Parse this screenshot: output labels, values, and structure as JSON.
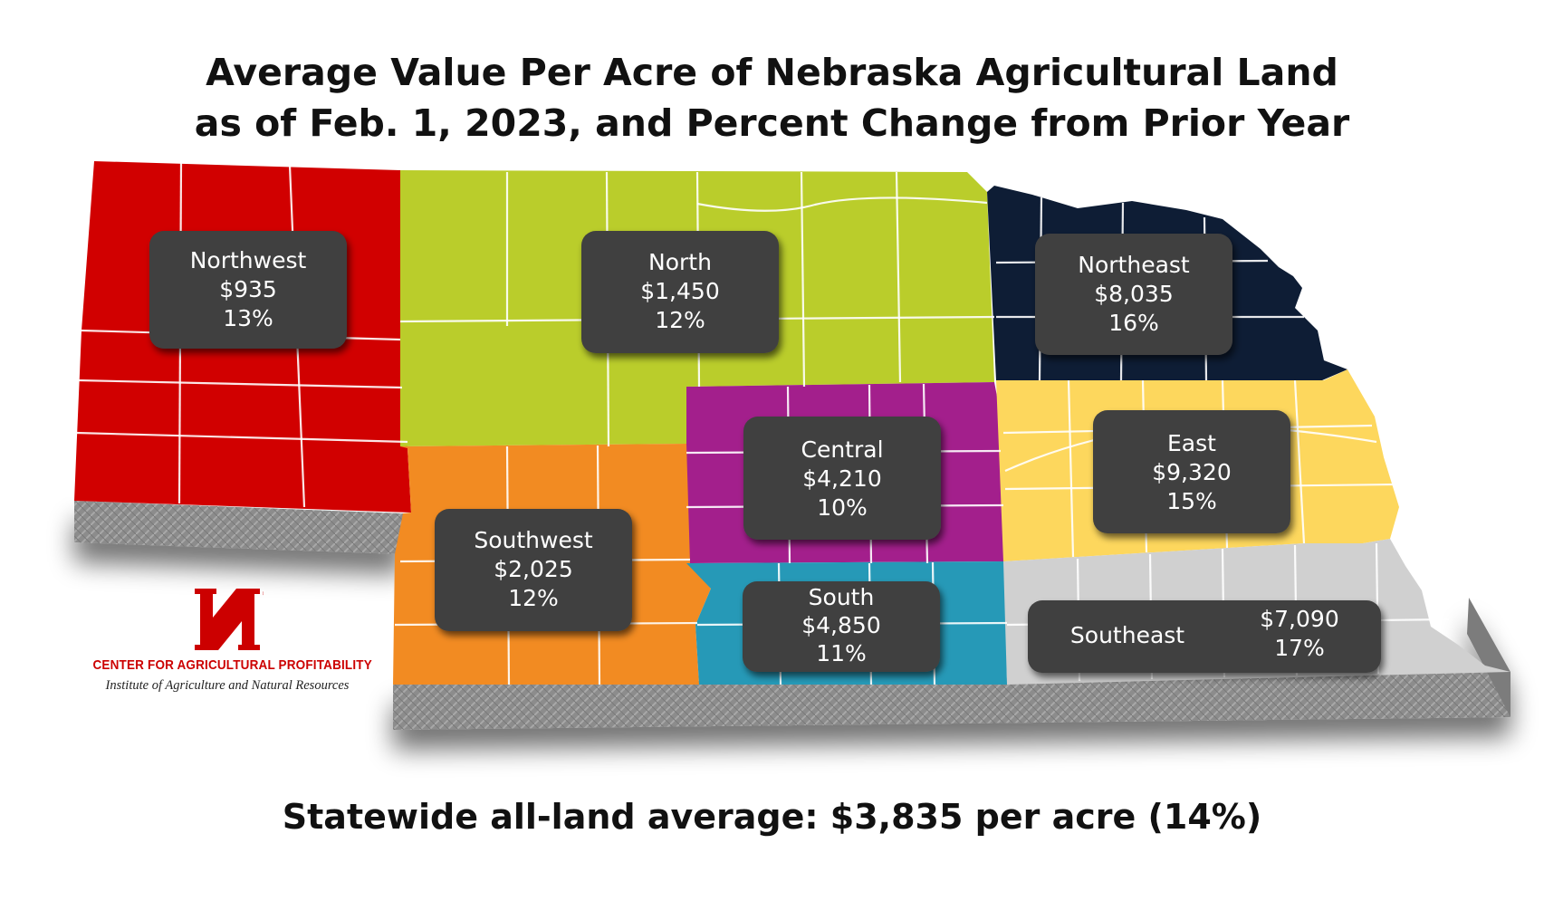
{
  "title": {
    "line1": "Average Value Per Acre of Nebraska Agricultural Land",
    "line2": "as of Feb. 1, 2023, and Percent Change from Prior Year"
  },
  "regions": [
    {
      "name": "Northwest",
      "value": "$935",
      "change": "13%",
      "color": "#d10000"
    },
    {
      "name": "North",
      "value": "$1,450",
      "change": "12%",
      "color": "#bacd2b"
    },
    {
      "name": "Northeast",
      "value": "$8,035",
      "change": "16%",
      "color": "#0e1d35"
    },
    {
      "name": "Central",
      "value": "$4,210",
      "change": "10%",
      "color": "#a31f8c"
    },
    {
      "name": "East",
      "value": "$9,320",
      "change": "15%",
      "color": "#fdd75d"
    },
    {
      "name": "Southwest",
      "value": "$2,025",
      "change": "12%",
      "color": "#f28b22"
    },
    {
      "name": "South",
      "value": "$4,850",
      "change": "11%",
      "color": "#2699b7"
    },
    {
      "name": "Southeast",
      "value": "$7,090",
      "change": "17%",
      "color": "#d0d0d0"
    }
  ],
  "statewide": "Statewide all-land average: $3,835 per acre (14%)",
  "logo": {
    "letter": "N",
    "center": "CENTER FOR AGRICULTURAL PROFITABILITY",
    "institute": "Institute of Agriculture and Natural Resources"
  },
  "colors": {
    "label_box": "#404040",
    "edge": "#8a8a8a",
    "text": "#111111",
    "brand_red": "#cc0000"
  }
}
